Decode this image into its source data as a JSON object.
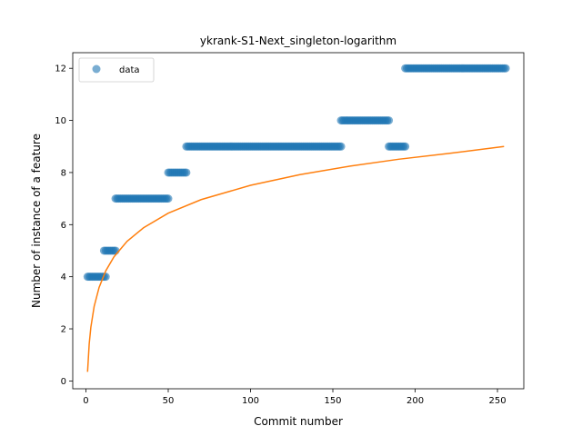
{
  "chart_data": {
    "type": "scatter",
    "title": "ykrank-S1-Next_singleton-logarithm",
    "xlabel": "Commit number",
    "ylabel": "Number of instance of a feature",
    "xlim": [
      -8,
      266
    ],
    "ylim": [
      -0.3,
      12.6
    ],
    "xticks": [
      0,
      50,
      100,
      150,
      200,
      250
    ],
    "yticks": [
      0,
      2,
      4,
      6,
      8,
      10,
      12
    ],
    "grid": false,
    "legend": {
      "position": "top-left",
      "entries": [
        "data"
      ]
    },
    "series": [
      {
        "name": "data",
        "kind": "scatter",
        "color": "#1f77b4",
        "opacity": 0.6,
        "segments": [
          {
            "x_start": 1,
            "x_end": 12,
            "y": 4
          },
          {
            "x_start": 11,
            "x_end": 18,
            "y": 5
          },
          {
            "x_start": 18,
            "x_end": 50,
            "y": 7
          },
          {
            "x_start": 50,
            "x_end": 61,
            "y": 8
          },
          {
            "x_start": 61,
            "x_end": 155,
            "y": 9
          },
          {
            "x_start": 155,
            "x_end": 184,
            "y": 10
          },
          {
            "x_start": 184,
            "x_end": 194,
            "y": 9
          },
          {
            "x_start": 194,
            "x_end": 255,
            "y": 12
          }
        ]
      },
      {
        "name": "",
        "kind": "line",
        "color": "#ff7f0e",
        "x": [
          1,
          2,
          3,
          5,
          8,
          12,
          17,
          25,
          35,
          50,
          70,
          100,
          130,
          160,
          190,
          220,
          254
        ],
        "y": [
          0.35,
          1.43,
          2.06,
          2.86,
          3.59,
          4.22,
          4.76,
          5.36,
          5.88,
          6.44,
          6.96,
          7.51,
          7.92,
          8.24,
          8.51,
          8.73,
          9.0
        ]
      }
    ]
  }
}
